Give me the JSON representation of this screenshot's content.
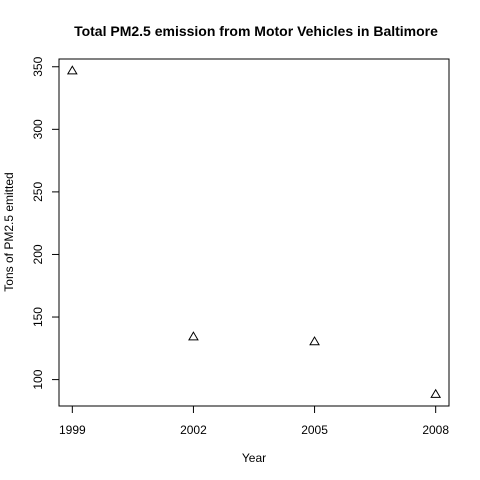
{
  "chart_data": {
    "type": "scatter",
    "title": "Total PM2.5 emission from Motor Vehicles in Baltimore",
    "xlabel": "Year",
    "ylabel": "Tons of PM2.5 emitted",
    "x": [
      1999,
      2002,
      2005,
      2008
    ],
    "y": [
      346.8,
      134.3,
      130.4,
      88.3
    ],
    "x_ticks": [
      "1999",
      "2002",
      "2005",
      "2008"
    ],
    "y_ticks": [
      "100",
      "150",
      "200",
      "250",
      "300",
      "350"
    ],
    "xlim": [
      1998.67,
      2008.33
    ],
    "ylim": [
      78.9,
      356.2
    ],
    "marker": "open-triangle",
    "marker_color": "#000000",
    "grid": false
  }
}
